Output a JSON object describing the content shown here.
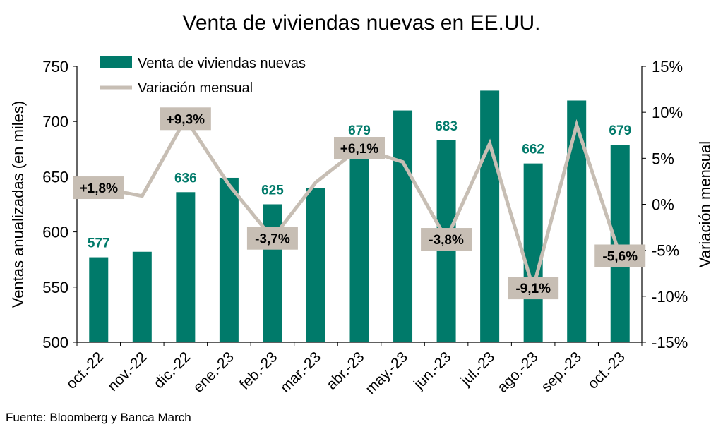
{
  "chart_data": {
    "type": "bar",
    "title": "Venta de viviendas nuevas en EE.UU.",
    "categories": [
      "oct.-22",
      "nov.-22",
      "dic.-22",
      "ene.-23",
      "feb.-23",
      "mar.-23",
      "abr.-23",
      "may.-23",
      "jun.-23",
      "jul.-23",
      "ago.-23",
      "sep.-23",
      "oct.-23"
    ],
    "series": [
      {
        "name": "Venta de viviendas nuevas",
        "axis": "left",
        "chart_type": "bar",
        "color": "#007A6A",
        "values": [
          577,
          582,
          636,
          649,
          625,
          640,
          679,
          710,
          683,
          728,
          662,
          719,
          679
        ]
      },
      {
        "name": "Variación mensual",
        "axis": "right",
        "chart_type": "line",
        "unit": "%",
        "color": "#C7BEB4",
        "values": [
          1.8,
          0.9,
          9.3,
          2.1,
          -3.7,
          2.4,
          6.1,
          4.6,
          -3.8,
          6.6,
          -9.1,
          8.6,
          -5.6
        ]
      }
    ],
    "bar_labels": [
      {
        "index": 0,
        "text": "577"
      },
      {
        "index": 2,
        "text": "636"
      },
      {
        "index": 4,
        "text": "625"
      },
      {
        "index": 6,
        "text": "679"
      },
      {
        "index": 8,
        "text": "683"
      },
      {
        "index": 10,
        "text": "662"
      },
      {
        "index": 12,
        "text": "679"
      }
    ],
    "line_labels": [
      {
        "index": 0,
        "text": "+1,8%"
      },
      {
        "index": 2,
        "text": "+9,3%"
      },
      {
        "index": 4,
        "text": "-3,7%"
      },
      {
        "index": 6,
        "text": "+6,1%"
      },
      {
        "index": 8,
        "text": "-3,8%"
      },
      {
        "index": 10,
        "text": "-9,1%"
      },
      {
        "index": 12,
        "text": "-5,6%"
      }
    ],
    "ylabel": "Ventas anualizadas (en miles)",
    "y2label": "Variación mensual",
    "ylim": [
      500,
      750
    ],
    "y2lim": [
      -15,
      15
    ],
    "yticks": [
      "500",
      "550",
      "600",
      "650",
      "700",
      "750"
    ],
    "y2ticks": [
      "-15%",
      "-10%",
      "-5%",
      "0%",
      "5%",
      "10%",
      "15%"
    ],
    "grid": false,
    "legend_position": "top-left",
    "colors": {
      "bar": "#007A6A",
      "line": "#C7BEB4",
      "label_box": "#C7BEB4",
      "bar_label_text": "#007A6A"
    },
    "source": "Fuente: Bloomberg y Banca March"
  }
}
